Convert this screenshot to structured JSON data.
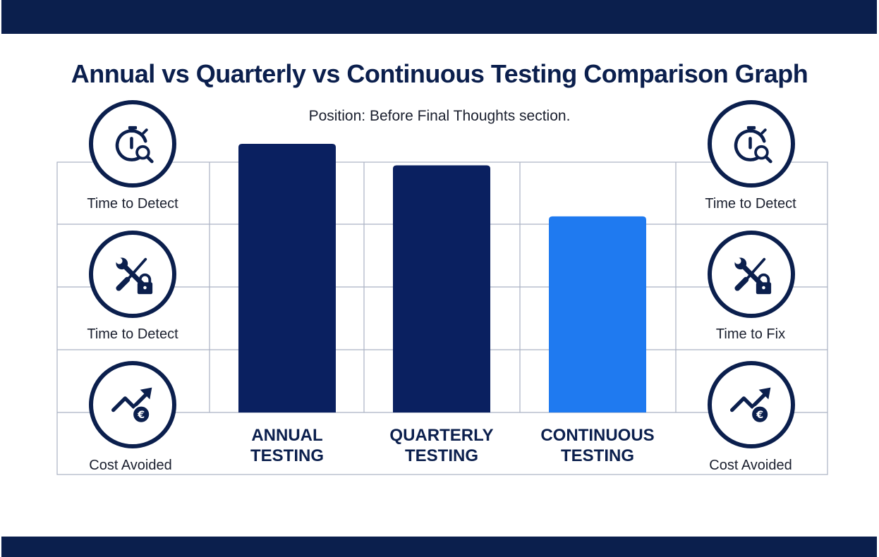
{
  "header": {
    "title": "Annual vs Quarterly vs Continuous Testing Comparison Graph"
  },
  "subtitle": "Position: Before Final Thoughts section.",
  "left_metrics": [
    {
      "label": "Time to Detect",
      "icon": "stopwatch-magnifier-icon"
    },
    {
      "label": "Time to Detect",
      "icon": "tools-lock-icon"
    },
    {
      "label": "Cost Avoided",
      "icon": "trend-up-euro-icon"
    }
  ],
  "right_metrics": [
    {
      "label": "Time to Detect",
      "icon": "stopwatch-magnifier-icon"
    },
    {
      "label": "Time to Fix",
      "icon": "tools-lock-icon"
    },
    {
      "label": "Cost Avoided",
      "icon": "trend-up-euro-icon"
    }
  ],
  "colors": {
    "dark_navy": "#0b1f4d",
    "bar_navy": "#0a2060",
    "bar_blue": "#1f7af0",
    "grid": "#aab2c3"
  },
  "chart_data": {
    "type": "bar",
    "title": "Annual vs Quarterly vs Continuous Testing Comparison Graph",
    "subtitle": "Position: Before Final Thoughts section.",
    "categories": [
      {
        "line1": "ANNUAL",
        "line2": "TESTING"
      },
      {
        "line1": "QUARTERLY",
        "line2": "TESTING"
      },
      {
        "line1": "CONTINUOUS",
        "line2": "TESTING"
      }
    ],
    "values": [
      100,
      92,
      73
    ],
    "bar_colors": [
      "#0a2060",
      "#0a2060",
      "#1f7af0"
    ],
    "ylim": [
      0,
      100
    ],
    "xlabel": "",
    "ylabel": "",
    "grid": true,
    "legend": "none"
  }
}
